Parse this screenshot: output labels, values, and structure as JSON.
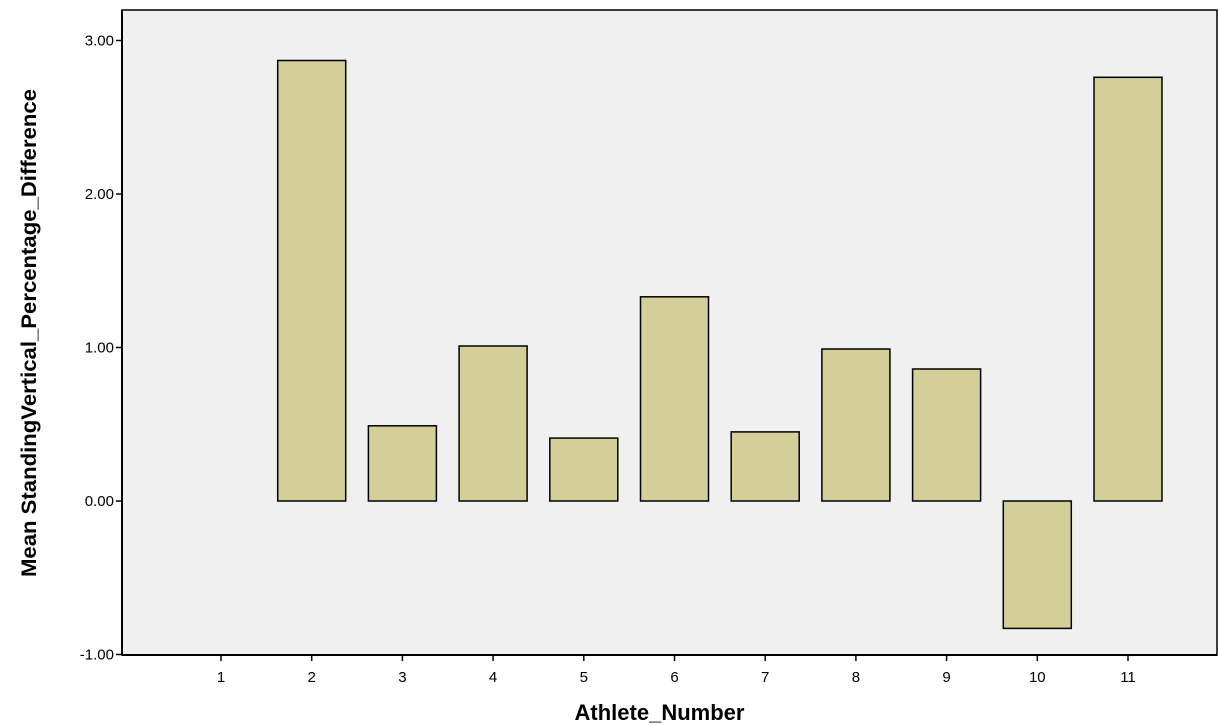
{
  "chart_data": {
    "type": "bar",
    "title": "",
    "xlabel": "Athlete_Number",
    "ylabel": "Mean StandingVertical_Percentage_Difference",
    "categories": [
      "1",
      "2",
      "3",
      "4",
      "5",
      "6",
      "7",
      "8",
      "9",
      "10",
      "11"
    ],
    "values": [
      0.0,
      2.87,
      0.49,
      1.01,
      0.41,
      1.33,
      0.45,
      0.99,
      0.86,
      -0.83,
      2.76
    ],
    "ylim": [
      -1.0,
      3.2
    ],
    "yticks": [
      -1.0,
      0.0,
      1.0,
      2.0,
      3.0
    ],
    "ytick_labels": [
      "-1.00",
      "0.00",
      "1.00",
      "2.00",
      "3.00"
    ],
    "grid": false,
    "legend": "none",
    "colors": {
      "bar_fill": "#d4cf98",
      "bar_stroke": "#000000",
      "plot_background": "#f0f0f0"
    }
  }
}
